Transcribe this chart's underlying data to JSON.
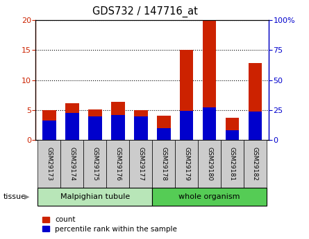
{
  "title": "GDS732 / 147716_at",
  "samples": [
    "GSM29173",
    "GSM29174",
    "GSM29175",
    "GSM29176",
    "GSM29177",
    "GSM29178",
    "GSM29179",
    "GSM29180",
    "GSM29181",
    "GSM29182"
  ],
  "count_values": [
    5.0,
    6.1,
    5.1,
    6.3,
    5.0,
    4.0,
    15.0,
    20.0,
    3.7,
    12.8
  ],
  "percentile_values": [
    3.2,
    4.5,
    3.9,
    4.2,
    3.9,
    2.0,
    4.8,
    5.4,
    1.6,
    4.7
  ],
  "tissue_groups": [
    {
      "label": "Malpighian tubule",
      "start": 0,
      "end": 5,
      "color": "#b8e6b8"
    },
    {
      "label": "whole organism",
      "start": 5,
      "end": 10,
      "color": "#55cc55"
    }
  ],
  "ylim_left": [
    0,
    20
  ],
  "ylim_right": [
    0,
    100
  ],
  "yticks_left": [
    0,
    5,
    10,
    15,
    20
  ],
  "yticks_right": [
    0,
    25,
    50,
    75,
    100
  ],
  "left_axis_color": "#cc2200",
  "right_axis_color": "#0000cc",
  "bar_color_count": "#cc2200",
  "bar_color_percentile": "#0000cc",
  "grid_color": "black",
  "bg_color": "#ffffff",
  "tick_label_bg": "#cccccc",
  "legend_count_label": "count",
  "legend_percentile_label": "percentile rank within the sample"
}
